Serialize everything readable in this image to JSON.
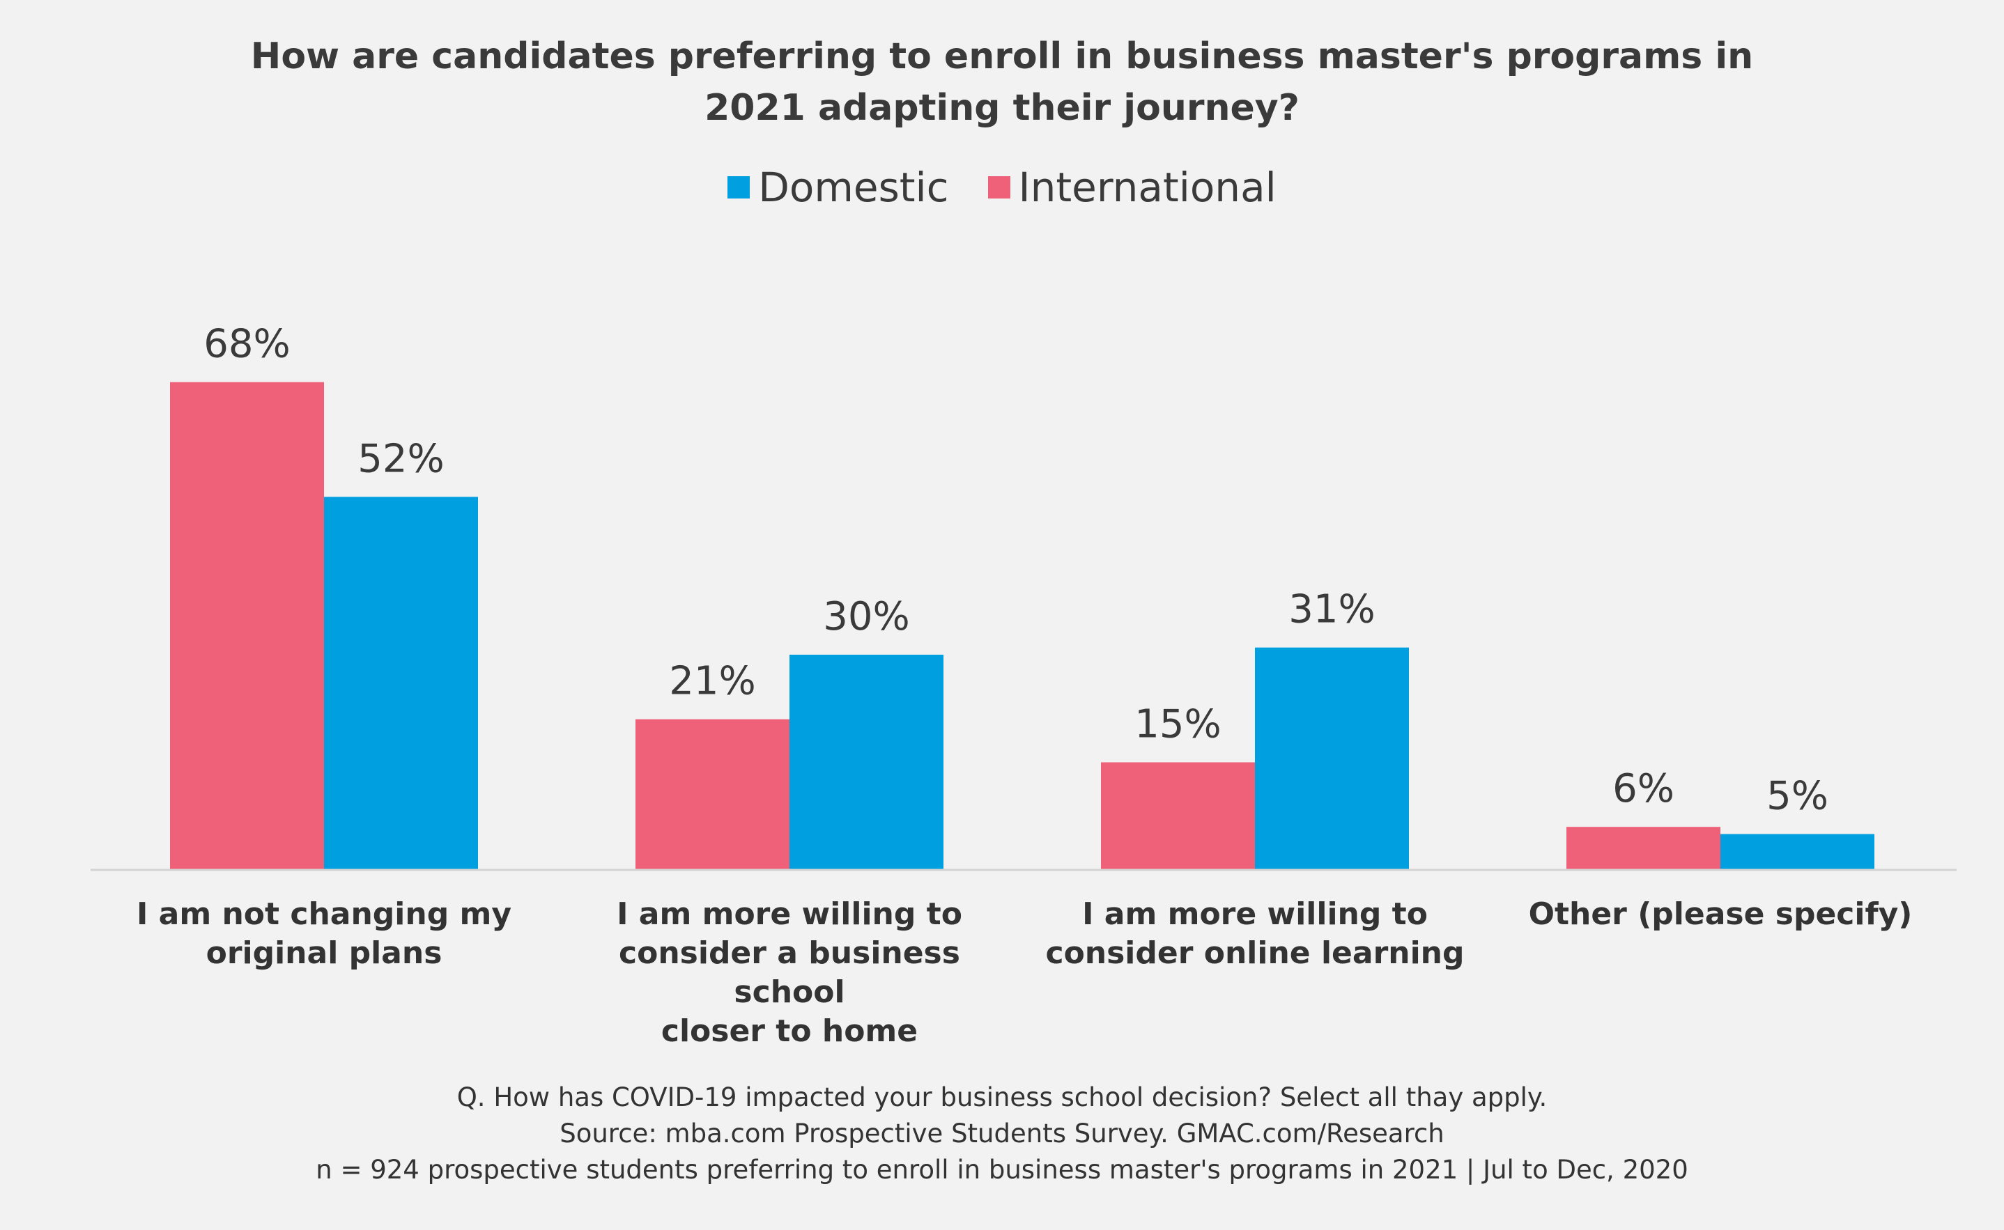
{
  "chart_data": {
    "type": "bar",
    "title_lines": [
      "How are candidates preferring to enroll in business master's programs in",
      "2021 adapting their journey?"
    ],
    "legend": [
      {
        "name": "Domestic",
        "color": "#009fe0"
      },
      {
        "name": "International",
        "color": "#ef6079"
      }
    ],
    "categories": [
      {
        "lines": [
          "I am not changing my",
          "original plans"
        ]
      },
      {
        "lines": [
          "I am more willing to",
          "consider a business school",
          "closer to home"
        ]
      },
      {
        "lines": [
          "I am more willing to",
          "consider online learning"
        ]
      },
      {
        "lines": [
          "Other (please specify)"
        ]
      }
    ],
    "series": [
      {
        "name": "International",
        "color": "#ef6079",
        "values": [
          68,
          21,
          15,
          6
        ],
        "labels": [
          "68%",
          "21%",
          "15%",
          "6%"
        ]
      },
      {
        "name": "Domestic",
        "color": "#009fe0",
        "values": [
          52,
          30,
          31,
          5
        ],
        "labels": [
          "52%",
          "30%",
          "31%",
          "5%"
        ]
      }
    ],
    "ylim": [
      0,
      100
    ],
    "grid": false
  },
  "footnotes": [
    "Q. How has COVID-19 impacted your business school decision? Select all thay apply.",
    "Source: mba.com Prospective Students Survey. GMAC.com/Research",
    "n = 924 prospective students preferring to enroll in business master's programs in 2021 | Jul to Dec, 2020"
  ]
}
